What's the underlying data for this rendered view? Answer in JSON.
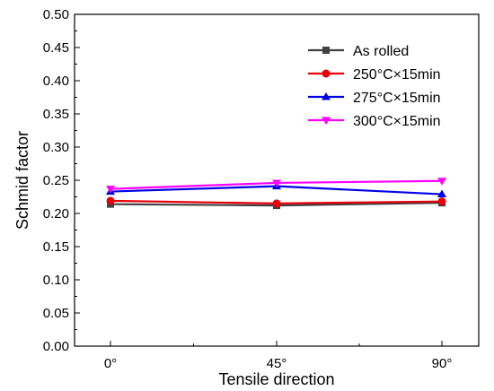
{
  "chart_data": {
    "type": "line",
    "title": "",
    "xlabel": "Tensile direction",
    "ylabel": "Schmid factor",
    "categories": [
      "0°",
      "45°",
      "90°"
    ],
    "ylim": [
      0.0,
      0.5
    ],
    "yticks": [
      "0.00",
      "0.05",
      "0.10",
      "0.15",
      "0.20",
      "0.25",
      "0.30",
      "0.35",
      "0.40",
      "0.45",
      "0.50"
    ],
    "grid": false,
    "legend_position": "top-right",
    "series": [
      {
        "name": "As rolled",
        "values": [
          0.214,
          0.212,
          0.216
        ],
        "color": "#404040",
        "marker": "square"
      },
      {
        "name": "250°C×15min",
        "values": [
          0.219,
          0.215,
          0.218
        ],
        "color": "#e8000b",
        "marker": "circle"
      },
      {
        "name": "275°C×15min",
        "values": [
          0.233,
          0.241,
          0.229
        ],
        "color": "#0000e6",
        "marker": "triangle-up"
      },
      {
        "name": "300°C×15min",
        "values": [
          0.237,
          0.246,
          0.249
        ],
        "color": "#ff00ff",
        "marker": "triangle-down"
      }
    ]
  }
}
